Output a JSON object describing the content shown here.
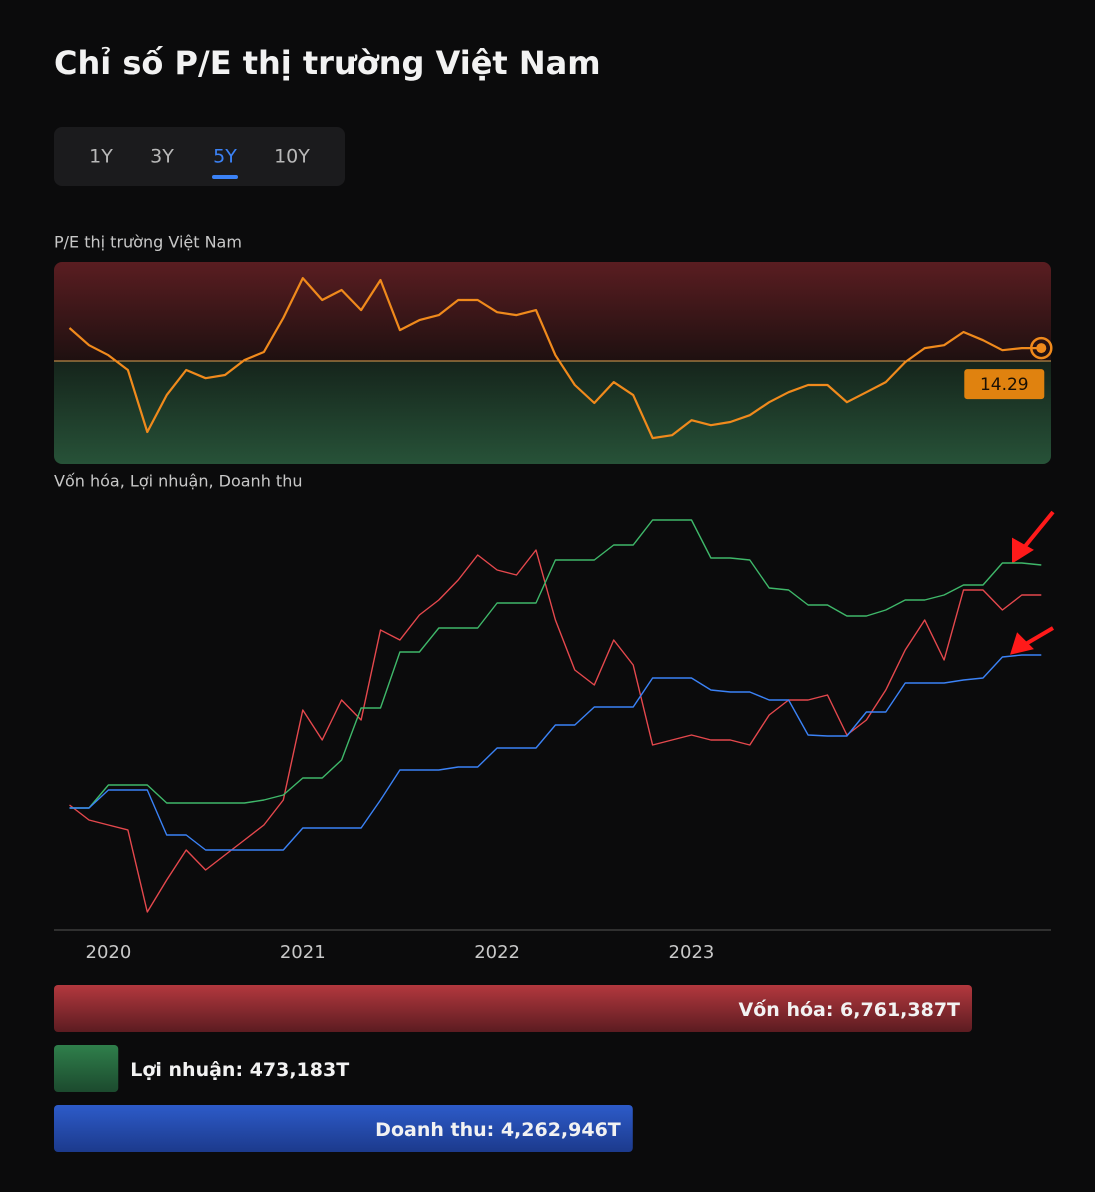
{
  "header": {
    "title": "Chỉ số P/E thị trường Việt Nam"
  },
  "tabs": {
    "items": [
      "1Y",
      "3Y",
      "5Y",
      "10Y"
    ],
    "active": 2
  },
  "chart_data": [
    {
      "type": "line",
      "title": "P/E thị trường Việt Nam",
      "color": "#f08a1c",
      "average": 13.8,
      "x": [
        2019.8,
        2019.9,
        2020.0,
        2020.1,
        2020.2,
        2020.3,
        2020.4,
        2020.5,
        2020.6,
        2020.7,
        2020.8,
        2020.9,
        2021.0,
        2021.1,
        2021.2,
        2021.3,
        2021.4,
        2021.5,
        2021.6,
        2021.7,
        2021.8,
        2021.9,
        2022.0,
        2022.1,
        2022.2,
        2022.3,
        2022.4,
        2022.5,
        2022.6,
        2022.7,
        2022.8,
        2022.9,
        2023.0,
        2023.1,
        2023.2,
        2023.3,
        2023.4,
        2023.5,
        2023.6,
        2023.7,
        2023.8,
        2023.9,
        2024.0,
        2024.1,
        2024.2,
        2024.3,
        2024.4,
        2024.5,
        2024.6,
        2024.7,
        2024.8
      ],
      "values": [
        15.05,
        14.4,
        14.02,
        13.46,
        11.11,
        12.51,
        13.46,
        13.15,
        13.27,
        13.84,
        14.14,
        15.43,
        16.94,
        16.11,
        16.49,
        15.73,
        16.87,
        14.97,
        15.35,
        15.54,
        16.11,
        16.11,
        15.65,
        15.54,
        15.73,
        14.02,
        12.89,
        12.21,
        13.0,
        12.51,
        10.88,
        10.99,
        11.56,
        11.37,
        11.49,
        11.75,
        12.24,
        12.62,
        12.89,
        12.89,
        12.24,
        12.62,
        13.0,
        13.76,
        14.29,
        14.4,
        14.9,
        14.59,
        14.21,
        14.29,
        14.29
      ],
      "xlim": [
        2019.72,
        2024.85
      ],
      "ylim": [
        9.9,
        17.55
      ]
    },
    {
      "type": "line",
      "title": "Vốn hóa, Lợi nhuận, Doanh thu",
      "x": [
        2019.8,
        2019.9,
        2020.0,
        2020.1,
        2020.2,
        2020.3,
        2020.4,
        2020.5,
        2020.6,
        2020.7,
        2020.8,
        2020.9,
        2021.0,
        2021.1,
        2021.2,
        2021.3,
        2021.4,
        2021.5,
        2021.6,
        2021.7,
        2021.8,
        2021.9,
        2022.0,
        2022.1,
        2022.2,
        2022.3,
        2022.4,
        2022.5,
        2022.6,
        2022.7,
        2022.8,
        2022.9,
        2023.0,
        2023.1,
        2023.2,
        2023.3,
        2023.4,
        2023.5,
        2023.6,
        2023.7,
        2023.8,
        2023.9,
        2024.0,
        2024.1,
        2024.2,
        2024.3,
        2024.4,
        2024.5,
        2024.6,
        2024.7,
        2024.8
      ],
      "series": [
        {
          "color": "#e5484d",
          "values": [
            125,
            110,
            105,
            100,
            18,
            50,
            80,
            60,
            75,
            90,
            105,
            130,
            220,
            190,
            230,
            210,
            300,
            290,
            315,
            330,
            350,
            375,
            360,
            355,
            380,
            310,
            260,
            245,
            290,
            265,
            185,
            190,
            195,
            190,
            190,
            185,
            215,
            230,
            230,
            235,
            195,
            210,
            240,
            280,
            310,
            270,
            340,
            340,
            320,
            335,
            335
          ]
        },
        {
          "color": "#3fb86a",
          "values": [
            122,
            122,
            145,
            145,
            145,
            127,
            127,
            127,
            127,
            127,
            130,
            135,
            152,
            152,
            170,
            222,
            222,
            278,
            278,
            302,
            302,
            302,
            327,
            327,
            327,
            370,
            370,
            370,
            385,
            385,
            410,
            410,
            410,
            372,
            372,
            370,
            342,
            340,
            325,
            325,
            314,
            314,
            320,
            330,
            330,
            335,
            345,
            345,
            367,
            367,
            365
          ]
        },
        {
          "color": "#3b82f6",
          "values": [
            122,
            122,
            140,
            140,
            140,
            95,
            95,
            80,
            80,
            80,
            80,
            80,
            102,
            102,
            102,
            102,
            130,
            160,
            160,
            160,
            163,
            163,
            182,
            182,
            182,
            205,
            205,
            223,
            223,
            223,
            252,
            252,
            252,
            240,
            238,
            238,
            230,
            230,
            195,
            194,
            194,
            218,
            218,
            247,
            247,
            247,
            250,
            252,
            273,
            275,
            275
          ]
        }
      ],
      "xlim": [
        2019.72,
        2024.85
      ],
      "xticks": [
        2020,
        2021,
        2022,
        2023
      ],
      "ylim": [
        0,
        430
      ]
    },
    {
      "type": "bar",
      "values": [
        6761387,
        473183,
        4262946
      ],
      "value_labels": [
        "Vốn hóa: 6,761,387T",
        "Lợi nhuận: 473,183T",
        "Doanh thu: 4,262,946T"
      ],
      "colors": [
        [
          "#b3383e",
          "#5c1c21"
        ],
        [
          "#2f7f4b",
          "#1c4a2e"
        ],
        [
          "#2d5bc9",
          "#1c3a8c"
        ]
      ]
    }
  ]
}
